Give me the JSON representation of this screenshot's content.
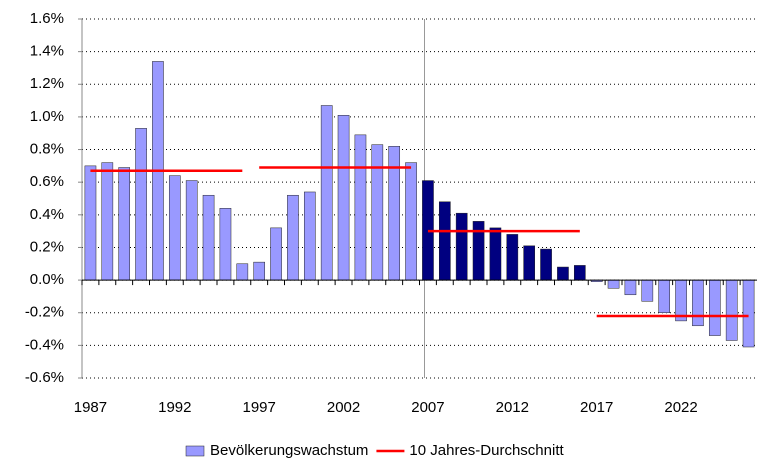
{
  "chart_data": {
    "type": "bar",
    "categories": [
      "1987",
      null,
      null,
      null,
      null,
      "1992",
      null,
      null,
      null,
      null,
      "1997",
      null,
      null,
      null,
      null,
      "2002",
      null,
      null,
      null,
      null,
      "2007",
      null,
      null,
      null,
      null,
      "2012",
      null,
      null,
      null,
      null,
      "2017",
      null,
      null,
      null,
      null,
      "2022",
      null,
      null,
      null,
      null
    ],
    "series": [
      {
        "name": "Bevölkerungswachstum",
        "color": "#9999ff",
        "colors": [
          "#9999ff",
          "#9999ff",
          "#9999ff",
          "#9999ff",
          "#9999ff",
          "#9999ff",
          "#9999ff",
          "#9999ff",
          "#9999ff",
          "#9999ff",
          "#9999ff",
          "#9999ff",
          "#9999ff",
          "#9999ff",
          "#9999ff",
          "#9999ff",
          "#9999ff",
          "#9999ff",
          "#9999ff",
          "#9999ff",
          "#000080",
          "#000080",
          "#000080",
          "#000080",
          "#000080",
          "#000080",
          "#000080",
          "#000080",
          "#000080",
          "#000080",
          "#9999ff",
          "#9999ff",
          "#9999ff",
          "#9999ff",
          "#9999ff",
          "#9999ff",
          "#9999ff",
          "#9999ff",
          "#9999ff",
          "#9999ff"
        ],
        "values": [
          0.7,
          0.72,
          0.69,
          0.93,
          1.34,
          0.64,
          0.61,
          0.52,
          0.44,
          0.1,
          0.11,
          0.32,
          0.52,
          0.54,
          1.07,
          1.01,
          0.89,
          0.83,
          0.82,
          0.72,
          0.61,
          0.48,
          0.41,
          0.36,
          0.32,
          0.28,
          0.21,
          0.19,
          0.08,
          0.09,
          -0.01,
          -0.05,
          -0.09,
          -0.13,
          -0.2,
          -0.25,
          -0.28,
          -0.34,
          -0.37,
          -0.41
        ]
      },
      {
        "name": "10 Jahres-Durchschnitt",
        "color": "#ff0000",
        "type": "line",
        "values": [
          0.67,
          0.67,
          0.67,
          0.67,
          0.67,
          0.67,
          0.67,
          0.67,
          0.67,
          0.67,
          0.69,
          0.69,
          0.69,
          0.69,
          0.69,
          0.69,
          0.69,
          0.69,
          0.69,
          0.69,
          0.3,
          0.3,
          0.3,
          0.3,
          0.3,
          0.3,
          0.3,
          0.3,
          0.3,
          0.3,
          -0.22,
          -0.22,
          -0.22,
          -0.22,
          -0.22,
          -0.22,
          -0.22,
          -0.22,
          -0.22,
          -0.22
        ]
      }
    ],
    "ylim": [
      -0.6,
      1.6
    ],
    "yticks": [
      {
        "value": -0.6,
        "label": "-0.6%"
      },
      {
        "value": -0.4,
        "label": "-0.4%"
      },
      {
        "value": -0.2,
        "label": "-0.2%"
      },
      {
        "value": 0,
        "label": "0.0%"
      },
      {
        "value": 0.2,
        "label": "0.2%"
      },
      {
        "value": 0.4,
        "label": "0.4%"
      },
      {
        "value": 0.6,
        "label": "0.6%"
      },
      {
        "value": 0.8,
        "label": "0.8%"
      },
      {
        "value": 1.0,
        "label": "1.0%"
      },
      {
        "value": 1.2,
        "label": "1.2%"
      },
      {
        "value": 1.4,
        "label": "1.4%"
      },
      {
        "value": 1.6,
        "label": "1.6%"
      }
    ],
    "grid": true,
    "legend": "bottom"
  }
}
